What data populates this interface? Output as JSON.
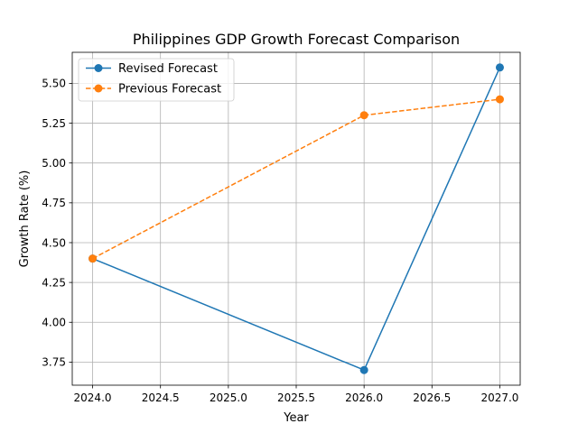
{
  "chart_data": {
    "type": "line",
    "title": "Philippines GDP Growth Forecast Comparison",
    "xlabel": "Year",
    "ylabel": "Growth Rate (%)",
    "xlim": [
      2023.85,
      2027.15
    ],
    "ylim": [
      3.605,
      5.695
    ],
    "xticks": [
      2024.0,
      2024.5,
      2025.0,
      2025.5,
      2026.0,
      2026.5,
      2027.0
    ],
    "xtick_labels": [
      "2024.0",
      "2024.5",
      "2025.0",
      "2025.5",
      "2026.0",
      "2026.5",
      "2027.0"
    ],
    "yticks": [
      3.75,
      4.0,
      4.25,
      4.5,
      4.75,
      5.0,
      5.25,
      5.5
    ],
    "ytick_labels": [
      "3.75",
      "4.00",
      "4.25",
      "4.50",
      "4.75",
      "5.00",
      "5.25",
      "5.50"
    ],
    "grid": true,
    "legend_position": "top-left",
    "series": [
      {
        "name": "Revised Forecast",
        "x": [
          2024,
          2026,
          2027
        ],
        "values": [
          4.4,
          3.7,
          5.6
        ],
        "color": "#1f77b4",
        "linestyle": "solid",
        "marker": "circle"
      },
      {
        "name": "Previous Forecast",
        "x": [
          2024,
          2026,
          2027
        ],
        "values": [
          4.4,
          5.3,
          5.4
        ],
        "color": "#ff7f0e",
        "linestyle": "dashed",
        "marker": "circle"
      }
    ]
  }
}
